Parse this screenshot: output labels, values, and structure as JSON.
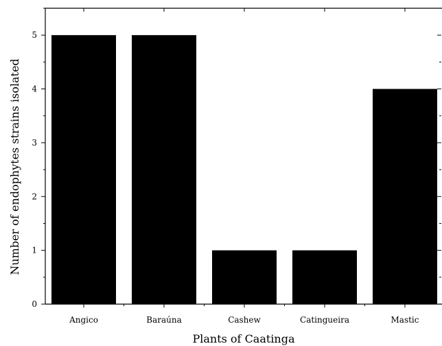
{
  "chart_data": {
    "type": "bar",
    "categories": [
      "Angico",
      "Baraúna",
      "Cashew",
      "Catingueira",
      "Mastic"
    ],
    "values": [
      5,
      5,
      1,
      1,
      4
    ],
    "xlabel": "Plants of Caatinga",
    "ylabel": "Number of endophytes strains isolated",
    "ylim": [
      0,
      5.5
    ],
    "yticks": [
      0,
      1,
      2,
      3,
      4,
      5
    ],
    "grid": false,
    "bar_color": "#000000"
  }
}
